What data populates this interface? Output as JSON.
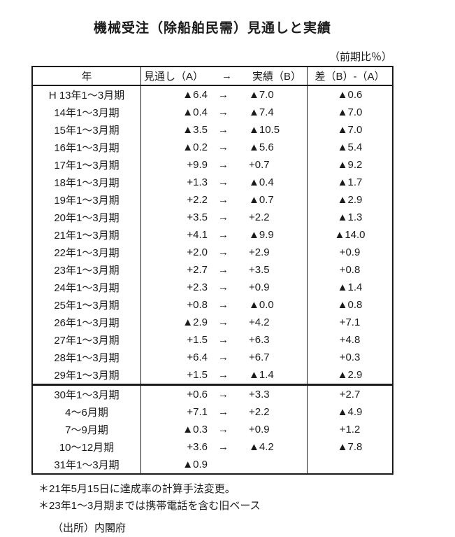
{
  "title": "機械受注（除船舶民需）見通しと実績",
  "unit_note": "（前期比％）",
  "table": {
    "headers": {
      "year": "年",
      "forecast": "見通し（A）",
      "arrow": "→",
      "actual": "実績（B）",
      "diff": "差（B）-（A）"
    },
    "thick_border_row": 17,
    "rows": [
      {
        "year": "H 13年1～3月期",
        "forecast": "▲6.4",
        "arrow": "→",
        "actual": "▲7.0",
        "diff": "▲0.6"
      },
      {
        "year": "14年1～3月期",
        "forecast": "▲0.4",
        "arrow": "→",
        "actual": "▲7.4",
        "diff": "▲7.0"
      },
      {
        "year": "15年1～3月期",
        "forecast": "▲3.5",
        "arrow": "→",
        "actual": "▲10.5",
        "diff": "▲7.0"
      },
      {
        "year": "16年1～3月期",
        "forecast": "▲0.2",
        "arrow": "→",
        "actual": "▲5.6",
        "diff": "▲5.4"
      },
      {
        "year": "17年1～3月期",
        "forecast": "+9.9",
        "arrow": "→",
        "actual": "+0.7",
        "diff": "▲9.2"
      },
      {
        "year": "18年1～3月期",
        "forecast": "+1.3",
        "arrow": "→",
        "actual": "▲0.4",
        "diff": "▲1.7"
      },
      {
        "year": "19年1～3月期",
        "forecast": "+2.2",
        "arrow": "→",
        "actual": "▲0.7",
        "diff": "▲2.9"
      },
      {
        "year": "20年1～3月期",
        "forecast": "+3.5",
        "arrow": "→",
        "actual": "+2.2",
        "diff": "▲1.3"
      },
      {
        "year": "21年1～3月期",
        "forecast": "+4.1",
        "arrow": "→",
        "actual": "▲9.9",
        "diff": "▲14.0"
      },
      {
        "year": "22年1～3月期",
        "forecast": "+2.0",
        "arrow": "→",
        "actual": "+2.9",
        "diff": "+0.9"
      },
      {
        "year": "23年1～3月期",
        "forecast": "+2.7",
        "arrow": "→",
        "actual": "+3.5",
        "diff": "+0.8"
      },
      {
        "year": "24年1～3月期",
        "forecast": "+2.3",
        "arrow": "→",
        "actual": "+0.9",
        "diff": "▲1.4"
      },
      {
        "year": "25年1～3月期",
        "forecast": "+0.8",
        "arrow": "→",
        "actual": "▲0.0",
        "diff": "▲0.8"
      },
      {
        "year": "26年1～3月期",
        "forecast": "▲2.9",
        "arrow": "→",
        "actual": "+4.2",
        "diff": "+7.1"
      },
      {
        "year": "27年1～3月期",
        "forecast": "+1.5",
        "arrow": "→",
        "actual": "+6.3",
        "diff": "+4.8"
      },
      {
        "year": "28年1～3月期",
        "forecast": "+6.4",
        "arrow": "→",
        "actual": "+6.7",
        "diff": "+0.3"
      },
      {
        "year": "29年1～3月期",
        "forecast": "+1.5",
        "arrow": "→",
        "actual": "▲1.4",
        "diff": "▲2.9"
      },
      {
        "year": "30年1～3月期",
        "forecast": "+0.6",
        "arrow": "→",
        "actual": "+3.3",
        "diff": "+2.7"
      },
      {
        "year": "4～6月期",
        "forecast": "+7.1",
        "arrow": "→",
        "actual": "+2.2",
        "diff": "▲4.9"
      },
      {
        "year": "7～9月期",
        "forecast": "▲0.3",
        "arrow": "→",
        "actual": "+0.9",
        "diff": "+1.2"
      },
      {
        "year": "10～12月期",
        "forecast": "+3.6",
        "arrow": "→",
        "actual": "▲4.2",
        "diff": "▲7.8"
      },
      {
        "year": "31年1～3月期",
        "forecast": "▲0.9",
        "arrow": "",
        "actual": "",
        "diff": ""
      }
    ]
  },
  "footnotes": [
    "＊21年5月15日に達成率の計算手法変更。",
    "＊23年1～3月期までは携帯電話を含む旧ベース"
  ],
  "source": "（出所）内閣府",
  "colors": {
    "text": "#1b1b1b",
    "border": "#1b1b1b",
    "background": "#ffffff"
  }
}
